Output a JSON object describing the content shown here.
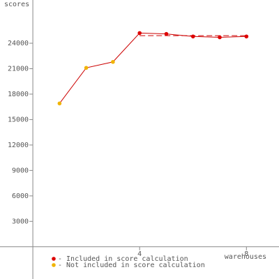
{
  "chart_data": {
    "type": "line",
    "y_label": "scores",
    "x_label": "warehouses",
    "x": [
      1,
      2,
      3,
      4,
      5,
      6,
      7,
      8
    ],
    "values": [
      16900,
      21100,
      21800,
      25200,
      25100,
      24800,
      24700,
      24800
    ],
    "line_color": "#cc0000",
    "point_colors": [
      "#f0b400",
      "#f0b400",
      "#f0b400",
      "#dd0000",
      "#dd0000",
      "#dd0000",
      "#dd0000",
      "#dd0000"
    ],
    "score_line": {
      "value": 24900,
      "x": [
        4,
        8
      ],
      "color": "#cc0000",
      "dashed": true
    },
    "legend": [
      {
        "label": "- Included in score calculation",
        "color": "#dd0000"
      },
      {
        "label": "- Not included in score calculation",
        "color": "#f0b400"
      }
    ],
    "xlim": [
      -1.23,
      9.22
    ],
    "ylim": [
      -3800,
      29100
    ],
    "xticks": [
      4,
      8
    ],
    "yticks": [
      3000,
      6000,
      9000,
      12000,
      15000,
      18000,
      21000,
      24000
    ]
  }
}
